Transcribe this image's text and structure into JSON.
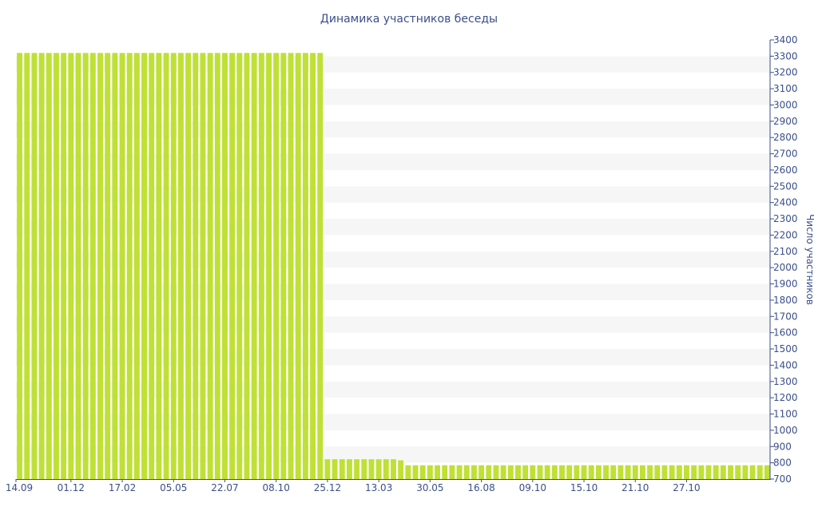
{
  "chart_data": {
    "type": "bar",
    "title": "Динамика участников беседы",
    "xlabel": "",
    "ylabel": "Число участников",
    "ylim": [
      700,
      3400
    ],
    "y_ticks": [
      700,
      800,
      900,
      1000,
      1100,
      1200,
      1300,
      1400,
      1500,
      1600,
      1700,
      1800,
      1900,
      2000,
      2100,
      2200,
      2300,
      2400,
      2500,
      2600,
      2700,
      2800,
      2900,
      3000,
      3100,
      3200,
      3300,
      3400
    ],
    "x_tick_labels": [
      {
        "label": "14.09",
        "index": 0
      },
      {
        "label": "01.12",
        "index": 7
      },
      {
        "label": "17.02",
        "index": 14
      },
      {
        "label": "05.05",
        "index": 21
      },
      {
        "label": "22.07",
        "index": 28
      },
      {
        "label": "08.10",
        "index": 35
      },
      {
        "label": "25.12",
        "index": 42
      },
      {
        "label": "13.03",
        "index": 49
      },
      {
        "label": "30.05",
        "index": 56
      },
      {
        "label": "16.08",
        "index": 63
      },
      {
        "label": "09.10",
        "index": 70
      },
      {
        "label": "15.10",
        "index": 77
      },
      {
        "label": "21.10",
        "index": 84
      },
      {
        "label": "27.10",
        "index": 91
      }
    ],
    "values": [
      3320,
      3320,
      3320,
      3320,
      3320,
      3320,
      3320,
      3320,
      3320,
      3320,
      3320,
      3320,
      3320,
      3320,
      3320,
      3320,
      3320,
      3320,
      3320,
      3320,
      3320,
      3320,
      3320,
      3320,
      3320,
      3320,
      3320,
      3320,
      3320,
      3320,
      3320,
      3320,
      3320,
      3320,
      3320,
      3320,
      3320,
      3320,
      3320,
      3320,
      3320,
      3320,
      822,
      822,
      822,
      822,
      822,
      822,
      822,
      822,
      822,
      822,
      815,
      785,
      785,
      785,
      785,
      785,
      785,
      785,
      785,
      785,
      785,
      785,
      785,
      785,
      785,
      785,
      785,
      785,
      785,
      785,
      785,
      785,
      785,
      785,
      785,
      785,
      785,
      785,
      785,
      785,
      785,
      785,
      785,
      785,
      785,
      785,
      785,
      785,
      785,
      785,
      785,
      785,
      785,
      785,
      785,
      785,
      785,
      785,
      785,
      785,
      785
    ],
    "grid": "horizontal alternating bands",
    "colors": {
      "bar": "#bfe035",
      "band": "#f6f6f6",
      "text": "#3b4f8a",
      "axis": "#3b4f8a"
    }
  }
}
